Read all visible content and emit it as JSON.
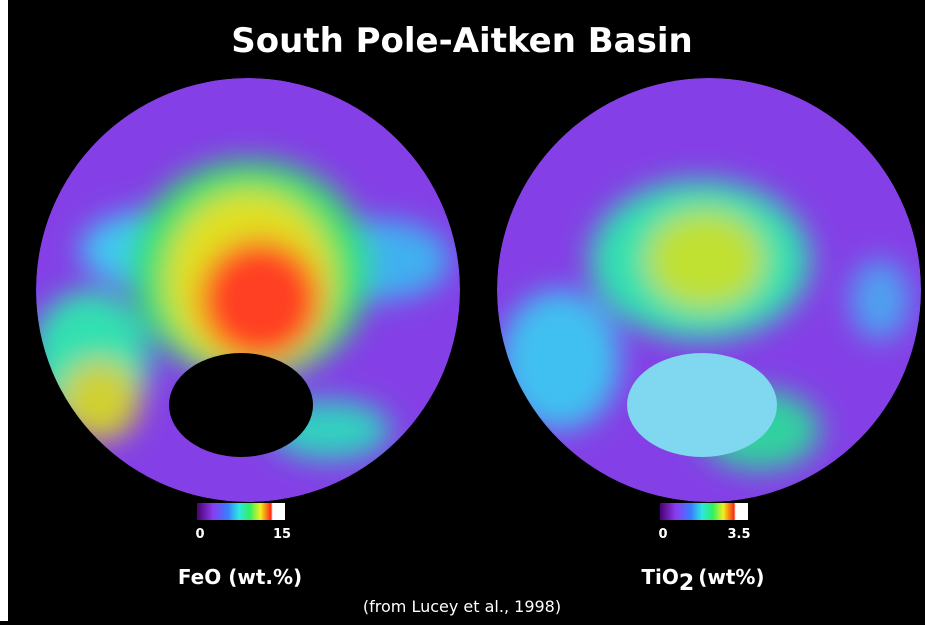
{
  "title": "South Pole-Aitken Basin",
  "maps": [
    {
      "label": "FeO (wt.%)",
      "colorbar": {
        "min": "0",
        "max": "15"
      }
    },
    {
      "label": {
        "base": "TiO",
        "sub": "2",
        "unit": "(wt%)"
      },
      "colorbar": {
        "min": "0",
        "max": "3.5"
      }
    }
  ],
  "caption": "(from Lucey et al., 1998)"
}
